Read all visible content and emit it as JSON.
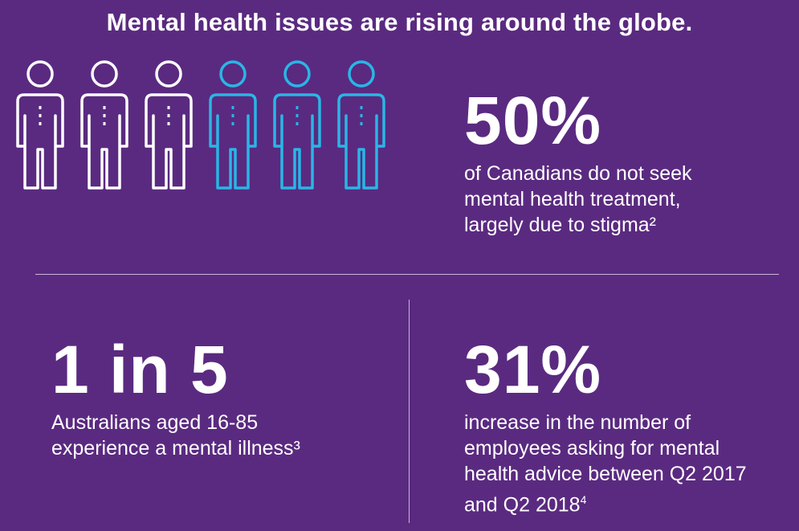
{
  "header": {
    "title": "Mental health issues are rising around the globe."
  },
  "people_icons": {
    "colors": [
      "#ffffff",
      "#ffffff",
      "#ffffff",
      "#29b6e6",
      "#29b6e6",
      "#29b6e6"
    ],
    "icon_name": "person-icon"
  },
  "stat_canada": {
    "value": "50%",
    "lines": [
      "of Canadians do not seek",
      "mental health treatment,",
      "largely due to stigma²"
    ]
  },
  "stat_australia": {
    "value": "1 in 5",
    "lines": [
      "Australians aged 16-85",
      "experience a mental illness³"
    ]
  },
  "stat_employees": {
    "value": "31%",
    "lines": [
      "increase in the number of",
      "employees asking for mental",
      "health advice between Q2 2017"
    ],
    "last_line": "and Q2 2018",
    "last_sup": "4"
  },
  "theme": {
    "background": "#5a2a80",
    "accent": "#29b6e6",
    "text": "#ffffff"
  }
}
